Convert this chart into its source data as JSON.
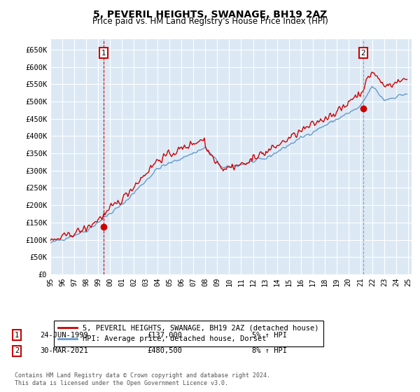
{
  "title": "5, PEVERIL HEIGHTS, SWANAGE, BH19 2AZ",
  "subtitle": "Price paid vs. HM Land Registry's House Price Index (HPI)",
  "background_color": "#ffffff",
  "plot_bg_color": "#dce9f5",
  "grid_color": "#ffffff",
  "hpi_color": "#6699cc",
  "price_color": "#cc0000",
  "marker1_vline_color": "#cc0000",
  "marker2_vline_color": "#999999",
  "marker1_vline_style": "--",
  "marker2_vline_style": "--",
  "legend_line1": "5, PEVERIL HEIGHTS, SWANAGE, BH19 2AZ (detached house)",
  "legend_line2": "HPI: Average price, detached house, Dorset",
  "footer": "Contains HM Land Registry data © Crown copyright and database right 2024.\nThis data is licensed under the Open Government Licence v3.0.",
  "ylim": [
    0,
    680000
  ],
  "yticks": [
    0,
    50000,
    100000,
    150000,
    200000,
    250000,
    300000,
    350000,
    400000,
    450000,
    500000,
    550000,
    600000,
    650000
  ],
  "ytick_labels": [
    "£0",
    "£50K",
    "£100K",
    "£150K",
    "£200K",
    "£250K",
    "£300K",
    "£350K",
    "£400K",
    "£450K",
    "£500K",
    "£550K",
    "£600K",
    "£650K"
  ],
  "marker1_year": 1999.46,
  "marker1_val": 137000,
  "marker2_year": 2021.25,
  "marker2_val": 480500,
  "ann1_date": "24-JUN-1999",
  "ann1_price": "£137,000",
  "ann1_hpi": "5% ↑ HPI",
  "ann2_date": "30-MAR-2021",
  "ann2_price": "£480,500",
  "ann2_hpi": "8% ↑ HPI"
}
